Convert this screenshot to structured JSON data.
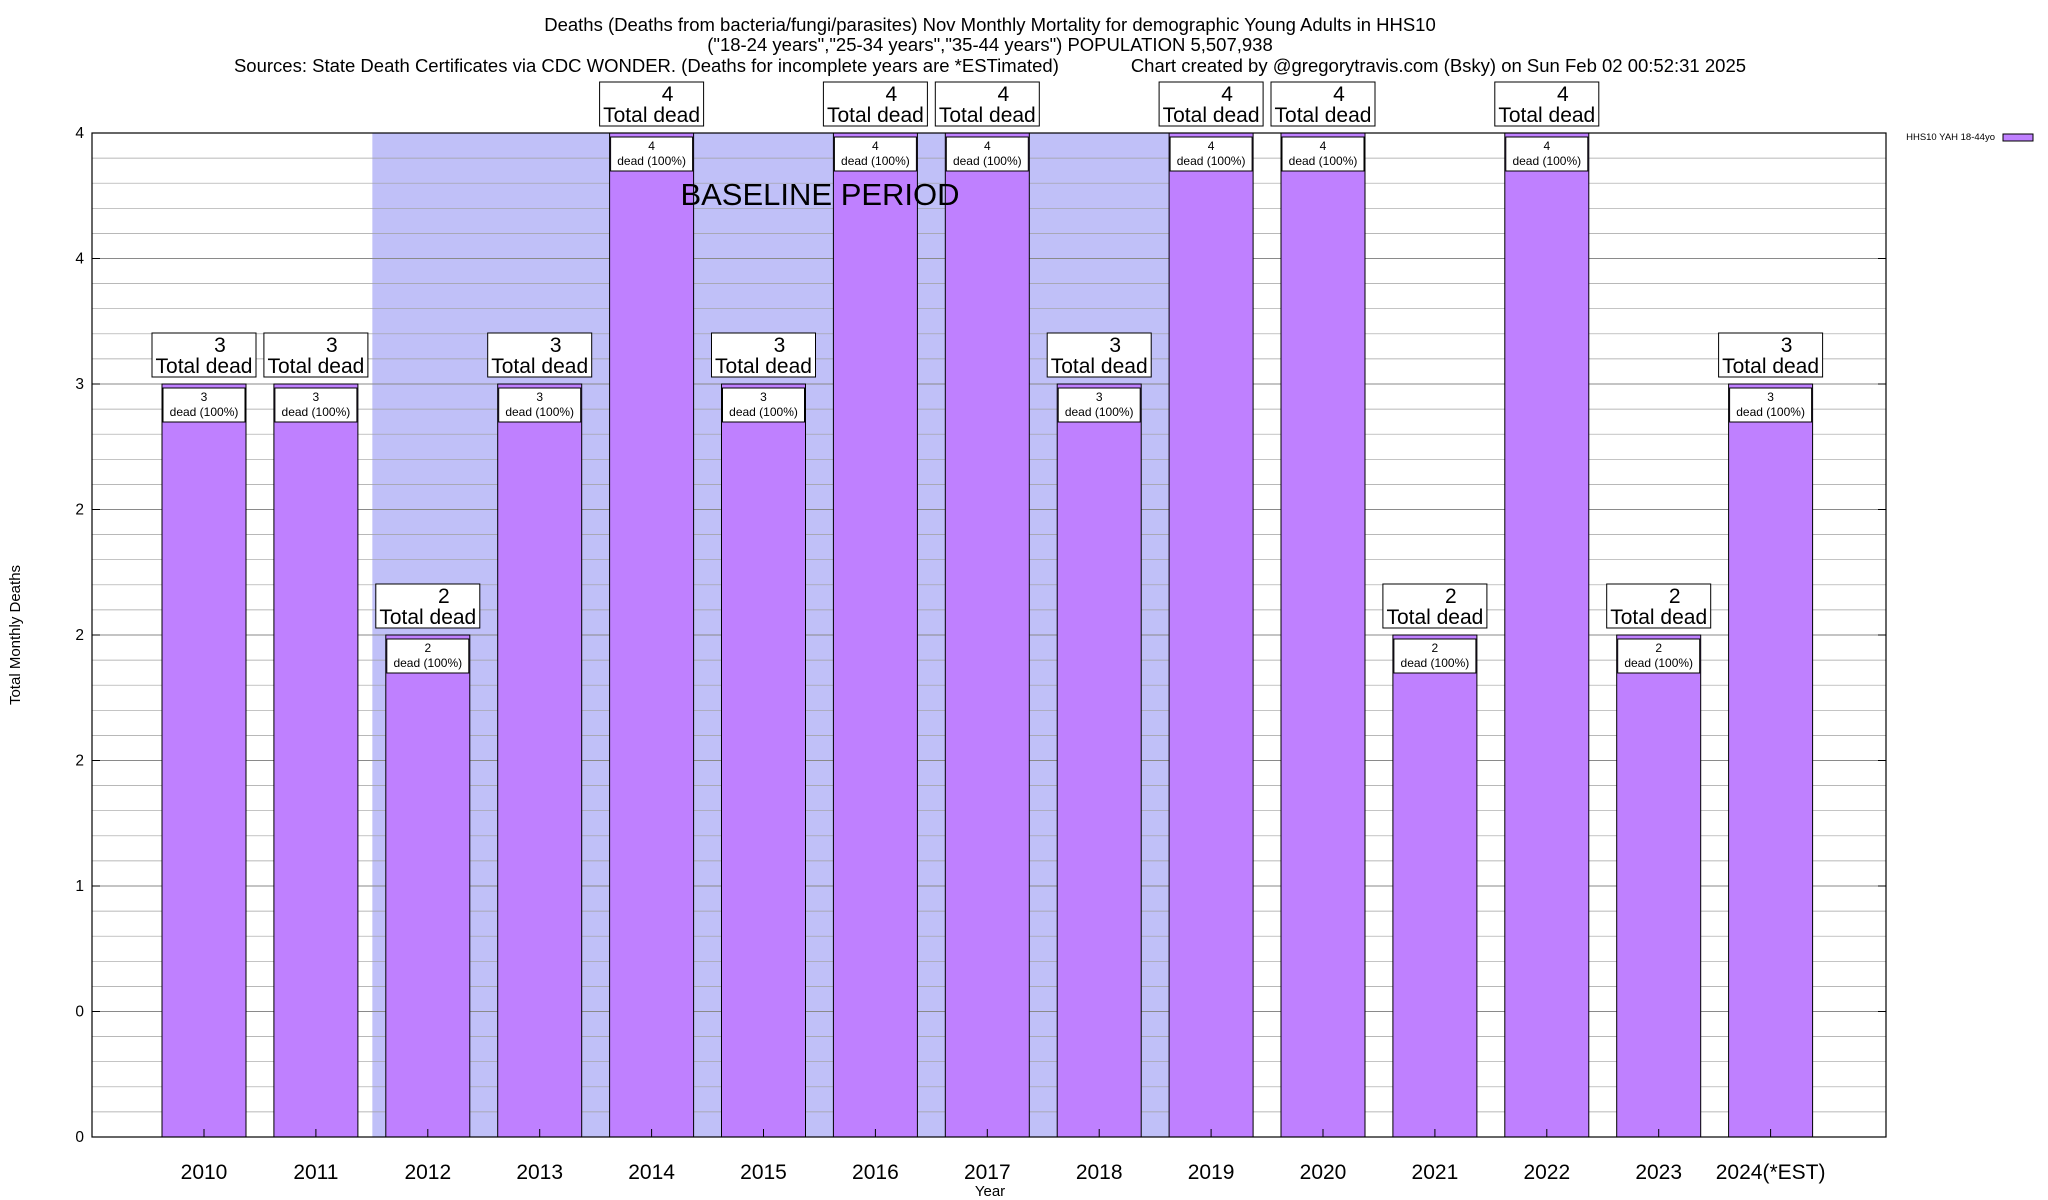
{
  "chart_data": {
    "type": "bar",
    "title_lines": [
      "Deaths (Deaths from bacteria/fungi/parasites) Nov Monthly Mortality for demographic Young Adults in HHS10",
      "(\"18-24 years\",\"25-34 years\",\"35-44 years\") POPULATION 5,507,938",
      "Sources: State Death Certificates via CDC WONDER. (Deaths for incomplete years are *ESTimated)              Chart created by @gregorytravis.com (Bsky) on Sun Feb 02 00:52:31 2025"
    ],
    "xlabel": "Year",
    "ylabel": "Total Monthly Deaths",
    "categories": [
      "2010",
      "2011",
      "2012",
      "2013",
      "2014",
      "2015",
      "2016",
      "2017",
      "2018",
      "2019",
      "2020",
      "2021",
      "2022",
      "2023",
      "2024(*EST)"
    ],
    "series": [
      {
        "name": "HHS10 YAH 18-44yo",
        "color": "#bf80ff",
        "values": [
          3,
          3,
          2,
          3,
          4,
          3,
          4,
          4,
          3,
          4,
          4,
          2,
          4,
          2,
          3
        ]
      }
    ],
    "ylim": [
      0,
      4
    ],
    "y_tick_values": [
      0,
      0.5,
      1,
      1.5,
      2,
      2.5,
      3,
      3.5,
      4
    ],
    "y_tick_labels": [
      "0",
      "0",
      "1",
      "2",
      "2",
      "2",
      "3",
      "4",
      "4"
    ],
    "minor_grid_step": 0.1,
    "bar_total_suffix": "Total dead",
    "bar_inner_suffix": "dead (100%)",
    "baseline": {
      "label": "BASELINE PERIOD",
      "start": "2012",
      "end": "2019",
      "color": "#c0c0f8"
    },
    "grid": true,
    "legend_position": "top-right"
  }
}
